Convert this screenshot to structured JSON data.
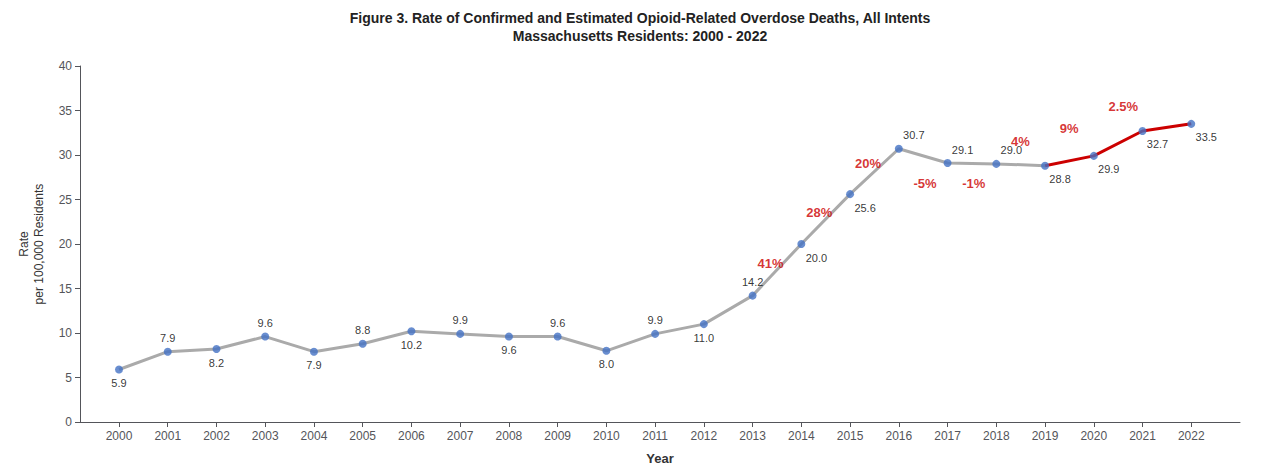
{
  "chart_data": {
    "type": "line",
    "title": "Figure 3. Rate of Confirmed and Estimated Opioid-Related Overdose Deaths, All Intents",
    "subtitle": "Massachusetts Residents: 2000 - 2022",
    "x_label": "Year",
    "y_label": "Rate\nper 100,000 Residents",
    "x": [
      2000,
      2001,
      2002,
      2003,
      2004,
      2005,
      2006,
      2007,
      2008,
      2009,
      2010,
      2011,
      2012,
      2013,
      2014,
      2015,
      2016,
      2017,
      2018,
      2019,
      2020,
      2021,
      2022
    ],
    "series": [
      {
        "type": "line",
        "color": "#AAAAAA",
        "marker": "none",
        "values": [
          5.9,
          7.9,
          8.2,
          9.6,
          7.9,
          8.8,
          10.2,
          9.9,
          9.6,
          9.6,
          8.0,
          9.9,
          11.0,
          14.2,
          20.0,
          25.6,
          30.7,
          29.1,
          29.0,
          28.8,
          null,
          null,
          null
        ]
      },
      {
        "type": "line",
        "color": "#CC0000",
        "marker": "none",
        "values": [
          null,
          null,
          null,
          null,
          null,
          null,
          null,
          null,
          null,
          null,
          null,
          null,
          null,
          null,
          null,
          null,
          null,
          null,
          null,
          28.8,
          29.9,
          32.7,
          33.5
        ]
      },
      {
        "type": "scatter",
        "color": "#4472C4",
        "marker": "circle",
        "data_labels": true,
        "values": [
          5.9,
          7.9,
          8.2,
          9.6,
          7.9,
          8.8,
          10.2,
          9.9,
          9.6,
          9.6,
          8.0,
          9.9,
          11.0,
          14.2,
          20.0,
          25.6,
          30.7,
          29.1,
          29.0,
          28.8,
          29.9,
          32.7,
          33.5
        ],
        "value_labels": [
          "5.9",
          "7.9",
          "8.2",
          "9.6",
          "7.9",
          "8.8",
          "10.2",
          "9.9",
          "9.6",
          "9.6",
          "8.0",
          "9.9",
          "11.0",
          "14.2",
          "20.0",
          "25.6",
          "30.7",
          "29.1",
          "29.0",
          "28.8",
          "29.9",
          "32.7",
          "33.5"
        ]
      }
    ],
    "annotations": [
      {
        "text": "41%",
        "x": 2013.1,
        "y": 17.8,
        "color": "#CC0000"
      },
      {
        "text": "28%",
        "x": 2014.1,
        "y": 23.5,
        "color": "#CC0000"
      },
      {
        "text": "20%",
        "x": 2015.1,
        "y": 29.0,
        "color": "#CC0000"
      },
      {
        "text": "-5%",
        "x": 2016.3,
        "y": 26.8,
        "color": "#CC0000"
      },
      {
        "text": "-1%",
        "x": 2017.3,
        "y": 26.8,
        "color": "#CC0000"
      },
      {
        "text": "4%",
        "x": 2018.3,
        "y": 31.5,
        "color": "#CC0000"
      },
      {
        "text": "9%",
        "x": 2019.3,
        "y": 33.0,
        "color": "#CC0000"
      },
      {
        "text": "2.5%",
        "x": 2020.3,
        "y": 35.5,
        "color": "#CC0000"
      }
    ],
    "xlim": [
      1999.2,
      2023
    ],
    "xticks": [
      2000,
      2001,
      2002,
      2003,
      2004,
      2005,
      2006,
      2007,
      2008,
      2009,
      2010,
      2011,
      2012,
      2013,
      2014,
      2015,
      2016,
      2017,
      2018,
      2019,
      2020,
      2021,
      2022
    ],
    "ylim": [
      0,
      40
    ],
    "yticks": [
      0,
      5,
      10,
      15,
      20,
      25,
      30,
      35,
      40
    ],
    "grid": false
  }
}
